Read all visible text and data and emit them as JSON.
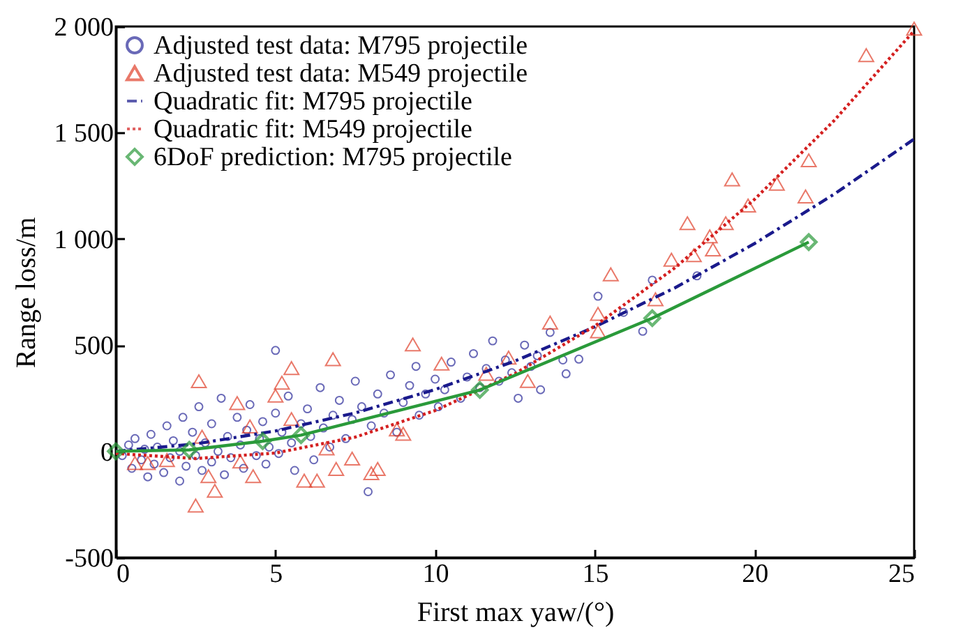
{
  "chart_data": {
    "type": "scatter",
    "xlabel": "First max yaw/(°)",
    "ylabel": "Range loss/m",
    "xlim": [
      0,
      25
    ],
    "xticks": [
      0,
      5,
      10,
      15,
      20,
      25
    ],
    "ylim": [
      -500,
      2000
    ],
    "yticks": [
      -500,
      0,
      500,
      {
        "value": 1000,
        "label": "1 000"
      },
      {
        "value": 1500,
        "label": "1 500"
      },
      {
        "value": 2000,
        "label": "2 000"
      }
    ],
    "grid": false,
    "legend": "top left",
    "series": [
      {
        "name": "Adjusted test data: M795 projectile",
        "marker": "circle",
        "color": "#2b2b9a",
        "x": [
          0.2,
          0.4,
          0.5,
          0.6,
          0.8,
          0.9,
          1.0,
          1.1,
          1.2,
          1.3,
          1.5,
          1.6,
          1.7,
          1.8,
          2.0,
          2.0,
          2.1,
          2.2,
          2.4,
          2.5,
          2.6,
          2.7,
          2.8,
          3.0,
          3.0,
          3.2,
          3.3,
          3.4,
          3.5,
          3.6,
          3.8,
          3.9,
          4.0,
          4.1,
          4.2,
          4.4,
          4.5,
          4.6,
          4.7,
          4.8,
          5.0,
          5.0,
          5.1,
          5.2,
          5.4,
          5.5,
          5.6,
          5.8,
          6.0,
          6.1,
          6.2,
          6.4,
          6.5,
          6.7,
          6.8,
          7.0,
          7.2,
          7.4,
          7.5,
          7.7,
          7.9,
          8.0,
          8.2,
          8.4,
          8.6,
          8.8,
          9.0,
          9.2,
          9.4,
          9.5,
          9.7,
          10.0,
          10.1,
          10.3,
          10.5,
          10.8,
          11.0,
          11.2,
          11.4,
          11.6,
          11.8,
          12.0,
          12.2,
          12.4,
          12.6,
          12.8,
          13.0,
          13.2,
          13.3,
          13.6,
          14.0,
          14.1,
          14.5,
          15.1,
          15.9,
          16.5,
          16.8,
          18.2
        ],
        "values": [
          -20,
          30,
          -80,
          60,
          -40,
          10,
          -120,
          80,
          -60,
          20,
          -100,
          120,
          -30,
          50,
          -140,
          0,
          160,
          -70,
          90,
          -20,
          210,
          -90,
          40,
          130,
          -50,
          0,
          250,
          -110,
          70,
          -30,
          160,
          30,
          -80,
          100,
          220,
          -20,
          60,
          140,
          -60,
          20,
          475,
          180,
          -10,
          90,
          260,
          40,
          -90,
          130,
          200,
          70,
          -40,
          300,
          110,
          20,
          170,
          240,
          60,
          150,
          330,
          210,
          -190,
          120,
          270,
          180,
          360,
          90,
          230,
          310,
          400,
          170,
          270,
          340,
          210,
          290,
          420,
          250,
          350,
          460,
          300,
          390,
          520,
          330,
          430,
          370,
          250,
          500,
          400,
          450,
          290,
          560,
          430,
          365,
          434,
          730,
          654,
          565,
          806,
          826
        ]
      },
      {
        "name": "Adjusted test data: M549 projectile",
        "marker": "triangle",
        "color": "#e0402a",
        "x": [
          0.6,
          1.0,
          1.6,
          2.5,
          2.6,
          2.7,
          2.9,
          3.1,
          3.8,
          3.9,
          4.2,
          4.3,
          5.0,
          5.2,
          5.5,
          5.5,
          5.9,
          6.3,
          6.6,
          6.8,
          6.9,
          7.4,
          8.0,
          8.2,
          8.8,
          9.0,
          9.3,
          10.2,
          11.6,
          12.3,
          12.9,
          13.6,
          15.1,
          15.1,
          15.5,
          16.9,
          17.4,
          17.9,
          18.1,
          18.6,
          18.7,
          19.1,
          19.3,
          19.8,
          20.7,
          21.6,
          21.7,
          23.5,
          25.0
        ],
        "values": [
          -55,
          -55,
          -41,
          -255,
          330,
          69,
          -117,
          -186,
          227,
          -48,
          117,
          -117,
          262,
          323,
          392,
          152,
          -138,
          -138,
          14,
          434,
          -83,
          -34,
          -103,
          -83,
          103,
          83,
          503,
          413,
          365,
          441,
          331,
          606,
          647,
          565,
          833,
          716,
          902,
          1074,
          923,
          1012,
          950,
          1074,
          1280,
          1157,
          1260,
          1200,
          1370,
          1865,
          1990
        ]
      },
      {
        "name": "Quadratic fit: M795 projectile",
        "type": "line",
        "marker": "none",
        "line_style": "dashed",
        "color": "#1a1a8c",
        "x": [
          0,
          2.5,
          5,
          7.5,
          10,
          12.5,
          15,
          17.5,
          20,
          22.5,
          25
        ],
        "values": [
          0,
          35,
          96,
          181,
          291,
          425,
          586,
          769,
          978,
          1211,
          1470
        ]
      },
      {
        "name": "Quadratic fit: M549 projectile",
        "type": "line",
        "marker": "none",
        "line_style": "dotted",
        "color": "#d42020",
        "x": [
          0,
          2.5,
          5,
          7.5,
          10,
          12.5,
          15,
          17.5,
          20,
          22.5,
          25
        ],
        "values": [
          -10,
          -34,
          -8,
          67,
          192,
          366,
          590,
          863,
          1186,
          1558,
          1980
        ]
      },
      {
        "name": "6DoF prediction: M795 projectile",
        "type": "line",
        "marker": "diamond",
        "line_style": "solid",
        "color": "#2a9a3a",
        "x": [
          0,
          2.3,
          4.6,
          5.8,
          11.4,
          16.8,
          21.7
        ],
        "values": [
          0,
          7,
          48,
          76,
          289,
          627,
          985
        ]
      }
    ]
  }
}
